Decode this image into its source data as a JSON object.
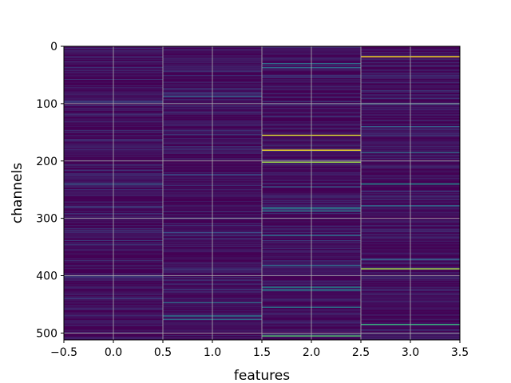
{
  "chart_data": {
    "type": "heatmap",
    "title": "",
    "xlabel": "features",
    "ylabel": "channels",
    "xlim": [
      -0.5,
      3.5
    ],
    "ylim": [
      512,
      0
    ],
    "y_axis_inverted": true,
    "colormap": "viridis",
    "grid": true,
    "n_rows": 512,
    "columns": [
      0,
      1,
      2,
      3
    ],
    "x_ticks": [
      -0.5,
      0.0,
      0.5,
      1.0,
      1.5,
      2.0,
      2.5,
      3.0,
      3.5
    ],
    "x_tick_labels": [
      "−0.5",
      "0.0",
      "0.5",
      "1.0",
      "1.5",
      "2.0",
      "2.5",
      "3.0",
      "3.5"
    ],
    "y_ticks": [
      0,
      100,
      200,
      300,
      400,
      500
    ],
    "y_tick_labels": [
      "0",
      "100",
      "200",
      "300",
      "400",
      "500"
    ],
    "bright_rows": [
      {
        "column": 0,
        "row": 97,
        "value": 0.25
      },
      {
        "column": 0,
        "row": 163,
        "value": 0.2
      },
      {
        "column": 0,
        "row": 240,
        "value": 0.3
      },
      {
        "column": 0,
        "row": 280,
        "value": 0.25
      },
      {
        "column": 0,
        "row": 402,
        "value": 0.2
      },
      {
        "column": 1,
        "row": 87,
        "value": 0.3
      },
      {
        "column": 1,
        "row": 224,
        "value": 0.25
      },
      {
        "column": 1,
        "row": 325,
        "value": 0.25
      },
      {
        "column": 1,
        "row": 447,
        "value": 0.35
      },
      {
        "column": 1,
        "row": 470,
        "value": 0.4
      },
      {
        "column": 1,
        "row": 476,
        "value": 0.35
      },
      {
        "column": 2,
        "row": 30,
        "value": 0.35
      },
      {
        "column": 2,
        "row": 37,
        "value": 0.35
      },
      {
        "column": 2,
        "row": 155,
        "value": 0.95
      },
      {
        "column": 2,
        "row": 181,
        "value": 1.0
      },
      {
        "column": 2,
        "row": 202,
        "value": 0.85
      },
      {
        "column": 2,
        "row": 245,
        "value": 0.3
      },
      {
        "column": 2,
        "row": 282,
        "value": 0.45
      },
      {
        "column": 2,
        "row": 287,
        "value": 0.4
      },
      {
        "column": 2,
        "row": 330,
        "value": 0.35
      },
      {
        "column": 2,
        "row": 382,
        "value": 0.35
      },
      {
        "column": 2,
        "row": 420,
        "value": 0.5
      },
      {
        "column": 2,
        "row": 425,
        "value": 0.45
      },
      {
        "column": 2,
        "row": 455,
        "value": 0.4
      },
      {
        "column": 2,
        "row": 505,
        "value": 0.7
      },
      {
        "column": 3,
        "row": 18,
        "value": 1.0
      },
      {
        "column": 3,
        "row": 100,
        "value": 0.4
      },
      {
        "column": 3,
        "row": 140,
        "value": 0.3
      },
      {
        "column": 3,
        "row": 185,
        "value": 0.35
      },
      {
        "column": 3,
        "row": 240,
        "value": 0.5
      },
      {
        "column": 3,
        "row": 278,
        "value": 0.35
      },
      {
        "column": 3,
        "row": 372,
        "value": 0.3
      },
      {
        "column": 3,
        "row": 388,
        "value": 0.85
      },
      {
        "column": 3,
        "row": 485,
        "value": 0.6
      }
    ]
  }
}
